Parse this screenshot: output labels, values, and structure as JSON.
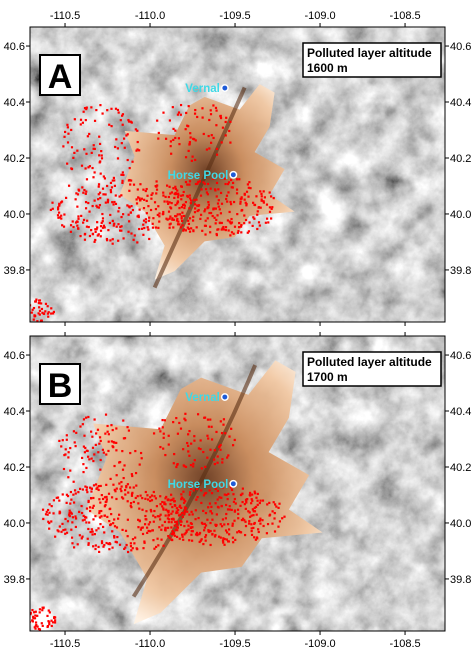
{
  "axes": {
    "xlim": [
      -110.706,
      -108.265
    ],
    "ylim": [
      39.614,
      40.668
    ],
    "xticks": [
      -110.5,
      {
        "value": -110,
        "label": "-110.0"
      },
      -109.5,
      {
        "value": -109,
        "label": "-109.0"
      },
      -108.5
    ],
    "yticks": [
      40.6,
      40.4,
      40.2,
      {
        "value": 40,
        "label": "40.0"
      },
      39.8
    ]
  },
  "panels": [
    {
      "label": "A",
      "annotation": {
        "title": "Polluted layer altitude",
        "value": "1600 m"
      },
      "places": [
        {
          "name": "Vernal",
          "lon": -109.56,
          "lat": 40.45
        },
        {
          "name": "Horse Pool",
          "lon": -109.51,
          "lat": 40.14
        }
      ]
    },
    {
      "label": "B",
      "annotation": {
        "title": "Polluted layer altitude",
        "value": "1700 m"
      },
      "places": [
        {
          "name": "Vernal",
          "lon": -109.56,
          "lat": 40.45
        },
        {
          "name": "Horse Pool",
          "lon": -109.51,
          "lat": 40.14
        }
      ]
    }
  ]
}
